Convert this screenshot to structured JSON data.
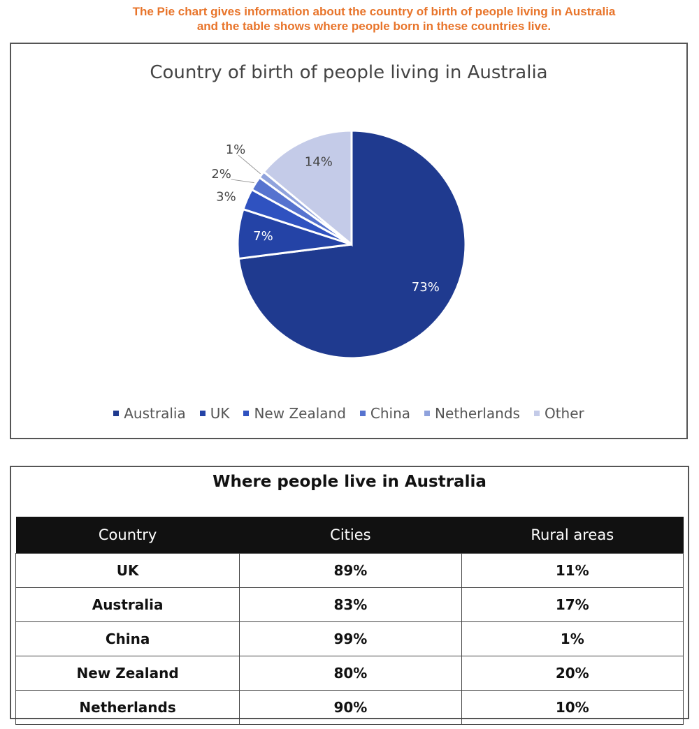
{
  "caption": {
    "line1": "The Pie chart gives information about the country of birth of people living in Australia",
    "line2": "and the table shows where people born in these countries live."
  },
  "chart_data": [
    {
      "type": "pie",
      "title": "Country of birth of people living in Australia",
      "categories": [
        "Australia",
        "UK",
        "New Zealand",
        "China",
        "Netherlands",
        "Other"
      ],
      "values": [
        73,
        7,
        3,
        2,
        1,
        14
      ],
      "labels": [
        "73%",
        "7%",
        "3%",
        "2%",
        "1%",
        "14%"
      ],
      "colors": [
        "#1f3a8f",
        "#2443a6",
        "#2f52c0",
        "#5673cf",
        "#8fa2dc",
        "#c4cbe8"
      ],
      "legend_position": "bottom"
    },
    {
      "type": "table",
      "title": "Where people live in Australia",
      "columns": [
        "Country",
        "Cities",
        "Rural areas"
      ],
      "rows": [
        [
          "UK",
          "89%",
          "11%"
        ],
        [
          "Australia",
          "83%",
          "17%"
        ],
        [
          "China",
          "99%",
          "1%"
        ],
        [
          "New Zealand",
          "80%",
          "20%"
        ],
        [
          "Netherlands",
          "90%",
          "10%"
        ]
      ]
    }
  ]
}
